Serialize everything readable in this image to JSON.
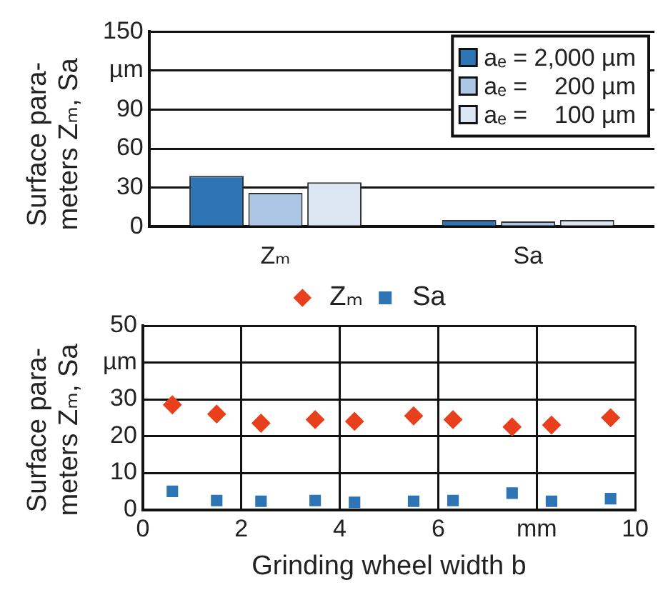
{
  "chart_data": [
    {
      "type": "bar",
      "ylabel": "Surface para-\nmeters Zₘ, Sa",
      "categories": [
        "Zₘ",
        "Sa"
      ],
      "series": [
        {
          "name": "aₑ = 2,000 µm",
          "color": "#2e75b6",
          "values": [
            39,
            5
          ]
        },
        {
          "name": "aₑ =    200 µm",
          "color": "#adc6e5",
          "values": [
            26,
            4
          ]
        },
        {
          "name": "aₑ =    100 µm",
          "color": "#dce6f2",
          "values": [
            34,
            5
          ]
        }
      ],
      "ylim": [
        0,
        150
      ],
      "yticks": [
        0,
        30,
        60,
        90,
        {
          "value": 120,
          "label": "µm"
        },
        150
      ],
      "grid": "y",
      "legend": "top right"
    },
    {
      "type": "scatter",
      "ylabel": "Surface para-\nmeters Zₘ, Sa",
      "xlabel": "Grinding wheel width b",
      "series": [
        {
          "name": "Zₘ",
          "color": "#e8401c",
          "marker": "diamond",
          "x": [
            0.6,
            1.5,
            2.4,
            3.5,
            4.3,
            5.5,
            6.3,
            7.5,
            8.3,
            9.5
          ],
          "values": [
            28.5,
            26,
            23.5,
            24.5,
            24,
            25.5,
            24.5,
            22.5,
            23,
            25
          ]
        },
        {
          "name": "Sa",
          "color": "#2e75b6",
          "marker": "square",
          "x": [
            0.6,
            1.5,
            2.4,
            3.5,
            4.3,
            5.5,
            6.3,
            7.5,
            8.3,
            9.5
          ],
          "values": [
            5,
            2.5,
            2.3,
            2.5,
            2,
            2.3,
            2.5,
            4.5,
            2.3,
            3
          ]
        }
      ],
      "xlim": [
        0,
        10
      ],
      "xticks": [
        0,
        2,
        4,
        6,
        {
          "value": 8,
          "label": "mm"
        },
        10
      ],
      "ylim": [
        0,
        50
      ],
      "yticks": [
        0,
        10,
        20,
        30,
        {
          "value": 40,
          "label": "µm"
        },
        50
      ],
      "grid": true,
      "legend": "top"
    }
  ]
}
